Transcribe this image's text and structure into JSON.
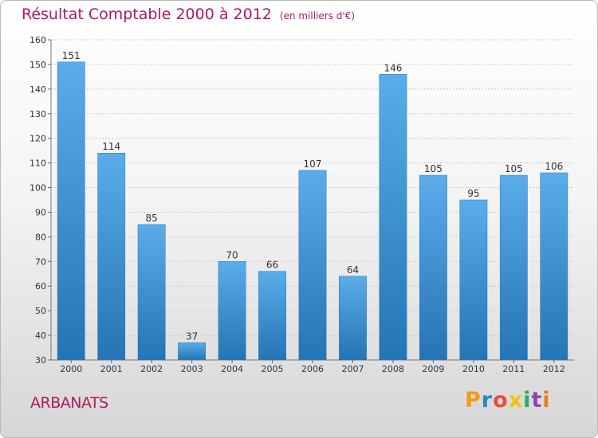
{
  "header": {
    "title": "Résultat Comptable 2000 à 2012",
    "subtitle": "(en milliers d'€)"
  },
  "footer": {
    "place": "ARBANATS",
    "logo_letters": [
      {
        "char": "P",
        "color": "#f39c12"
      },
      {
        "char": "r",
        "color": "#2e86c1"
      },
      {
        "char": "o",
        "color": "#e74c3c"
      },
      {
        "char": "x",
        "color": "#f1c40f"
      },
      {
        "char": "i",
        "color": "#27ae60"
      },
      {
        "char": "t",
        "color": "#8e44ad"
      },
      {
        "char": "i",
        "color": "#e67e22"
      }
    ]
  },
  "colors": {
    "title": "#b1185d",
    "bar_top": "#5aacea",
    "bar_bottom": "#2574b3",
    "grid": "#c8c8c8"
  },
  "chart_data": {
    "type": "bar",
    "title": "Résultat Comptable 2000 à 2012",
    "subtitle": "(en milliers d'€)",
    "categories": [
      "2000",
      "2001",
      "2002",
      "2003",
      "2004",
      "2005",
      "2006",
      "2007",
      "2008",
      "2009",
      "2010",
      "2011",
      "2012"
    ],
    "values": [
      151,
      114,
      85,
      37,
      70,
      66,
      107,
      64,
      146,
      105,
      95,
      105,
      106
    ],
    "data_labels": [
      "151",
      "114",
      "85",
      "37",
      "70",
      "66",
      "107",
      "64",
      "146",
      "105",
      "95",
      "105",
      "106"
    ],
    "yticks": [
      30,
      40,
      50,
      60,
      70,
      80,
      90,
      100,
      110,
      120,
      130,
      140,
      150,
      160
    ],
    "ylim": [
      30,
      160
    ],
    "xlabel": "",
    "ylabel": "",
    "grid": true,
    "legend": "none"
  }
}
